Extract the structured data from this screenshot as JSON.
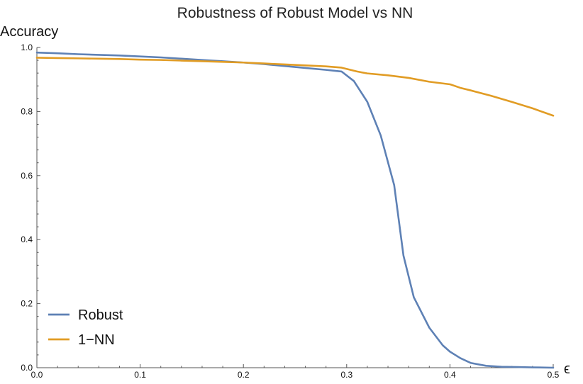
{
  "chart_data": {
    "type": "line",
    "title": "Robustness of Robust Model vs NN",
    "xlabel": "ϵ",
    "ylabel": "Accuracy",
    "xlim": [
      0,
      0.5
    ],
    "ylim": [
      0,
      1.0
    ],
    "x_ticks": [
      "0.0",
      "0.1",
      "0.2",
      "0.3",
      "0.4",
      "0.5"
    ],
    "y_ticks": [
      "0.0",
      "0.2",
      "0.4",
      "0.6",
      "0.8",
      "1.0"
    ],
    "grid": false,
    "legend_position": "bottom-left",
    "series": [
      {
        "name": "Robust",
        "color": "#5e81b5",
        "x": [
          0.0,
          0.02,
          0.04,
          0.06,
          0.08,
          0.1,
          0.12,
          0.14,
          0.16,
          0.18,
          0.2,
          0.22,
          0.24,
          0.26,
          0.28,
          0.295,
          0.307,
          0.32,
          0.333,
          0.346,
          0.355,
          0.365,
          0.38,
          0.393,
          0.4,
          0.41,
          0.42,
          0.435,
          0.45,
          0.465,
          0.48,
          0.5
        ],
        "y": [
          0.984,
          0.982,
          0.979,
          0.977,
          0.975,
          0.972,
          0.969,
          0.965,
          0.961,
          0.957,
          0.953,
          0.948,
          0.942,
          0.936,
          0.93,
          0.925,
          0.895,
          0.83,
          0.725,
          0.57,
          0.35,
          0.22,
          0.125,
          0.07,
          0.05,
          0.03,
          0.015,
          0.006,
          0.003,
          0.002,
          0.001,
          0.0
        ]
      },
      {
        "name": "1−NN",
        "color": "#e19c24",
        "x": [
          0.0,
          0.02,
          0.04,
          0.06,
          0.08,
          0.1,
          0.12,
          0.14,
          0.16,
          0.18,
          0.2,
          0.22,
          0.24,
          0.26,
          0.28,
          0.295,
          0.31,
          0.32,
          0.34,
          0.36,
          0.38,
          0.4,
          0.41,
          0.42,
          0.44,
          0.46,
          0.48,
          0.5
        ],
        "y": [
          0.968,
          0.967,
          0.966,
          0.965,
          0.964,
          0.962,
          0.961,
          0.959,
          0.957,
          0.955,
          0.953,
          0.95,
          0.947,
          0.944,
          0.941,
          0.937,
          0.925,
          0.919,
          0.913,
          0.905,
          0.893,
          0.885,
          0.874,
          0.866,
          0.849,
          0.83,
          0.81,
          0.787
        ]
      }
    ]
  }
}
